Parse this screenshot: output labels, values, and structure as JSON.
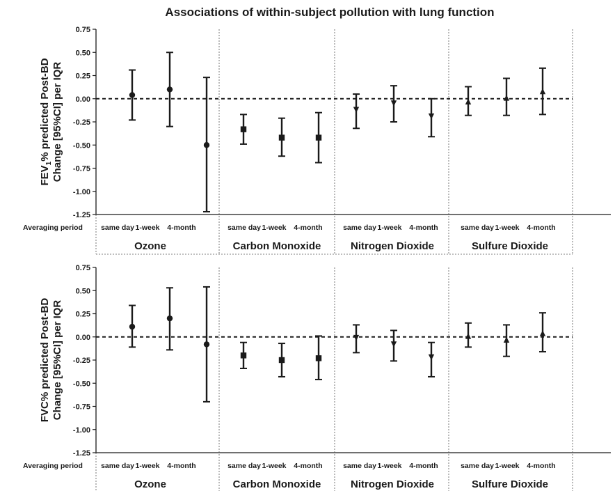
{
  "chart_data": {
    "type": "errorbar",
    "title": "Associations of within-subject pollution with lung function",
    "averaging_label": "Averaging period",
    "periods": [
      "same day",
      "1-week",
      "4-month"
    ],
    "pollutants": [
      {
        "name": "Ozone",
        "marker": "circle"
      },
      {
        "name": "Carbon Monoxide",
        "marker": "square"
      },
      {
        "name": "Nitrogen Dioxide",
        "marker": "triangle-down"
      },
      {
        "name": "Sulfure Dioxide",
        "marker": "triangle-up"
      }
    ],
    "yticks": [
      "0.75",
      "0.50",
      "0.25",
      "0.00",
      "-0.25",
      "-0.50",
      "-0.75",
      "-1.00",
      "-1.25"
    ],
    "ylim": [
      -1.25,
      0.75
    ],
    "panels": [
      {
        "ylabel_line1": "FEV",
        "ylabel_sub": "1",
        "ylabel_line1_rest": "% predicted Post-BD",
        "ylabel_line2": "Change [95%CI] per IQR",
        "estimates": [
          [
            {
              "est": 0.04,
              "low": -0.23,
              "high": 0.31
            },
            {
              "est": 0.1,
              "low": -0.3,
              "high": 0.5
            },
            {
              "est": -0.5,
              "low": -1.22,
              "high": 0.23
            }
          ],
          [
            {
              "est": -0.33,
              "low": -0.49,
              "high": -0.17
            },
            {
              "est": -0.42,
              "low": -0.62,
              "high": -0.21
            },
            {
              "est": -0.42,
              "low": -0.69,
              "high": -0.15
            }
          ],
          [
            {
              "est": -0.12,
              "low": -0.32,
              "high": 0.05
            },
            {
              "est": -0.05,
              "low": -0.25,
              "high": 0.14
            },
            {
              "est": -0.19,
              "low": -0.41,
              "high": 0.0
            }
          ],
          [
            {
              "est": -0.03,
              "low": -0.18,
              "high": 0.13
            },
            {
              "est": 0.01,
              "low": -0.18,
              "high": 0.22
            },
            {
              "est": 0.08,
              "low": -0.17,
              "high": 0.33
            }
          ]
        ]
      },
      {
        "ylabel_line1": "FVC% predicted Post-BD",
        "ylabel_sub": "",
        "ylabel_line1_rest": "",
        "ylabel_line2": "Change [95%CI] per IQR",
        "estimates": [
          [
            {
              "est": 0.11,
              "low": -0.11,
              "high": 0.34
            },
            {
              "est": 0.2,
              "low": -0.14,
              "high": 0.53
            },
            {
              "est": -0.08,
              "low": -0.7,
              "high": 0.54
            }
          ],
          [
            {
              "est": -0.2,
              "low": -0.34,
              "high": -0.06
            },
            {
              "est": -0.25,
              "low": -0.43,
              "high": -0.07
            },
            {
              "est": -0.23,
              "low": -0.46,
              "high": 0.01
            }
          ],
          [
            {
              "est": -0.01,
              "low": -0.17,
              "high": 0.13
            },
            {
              "est": -0.08,
              "low": -0.26,
              "high": 0.07
            },
            {
              "est": -0.22,
              "low": -0.43,
              "high": -0.06
            }
          ],
          [
            {
              "est": 0.01,
              "low": -0.11,
              "high": 0.15
            },
            {
              "est": -0.03,
              "low": -0.21,
              "high": 0.13
            },
            {
              "est": 0.04,
              "low": -0.16,
              "high": 0.26
            }
          ]
        ]
      }
    ]
  }
}
